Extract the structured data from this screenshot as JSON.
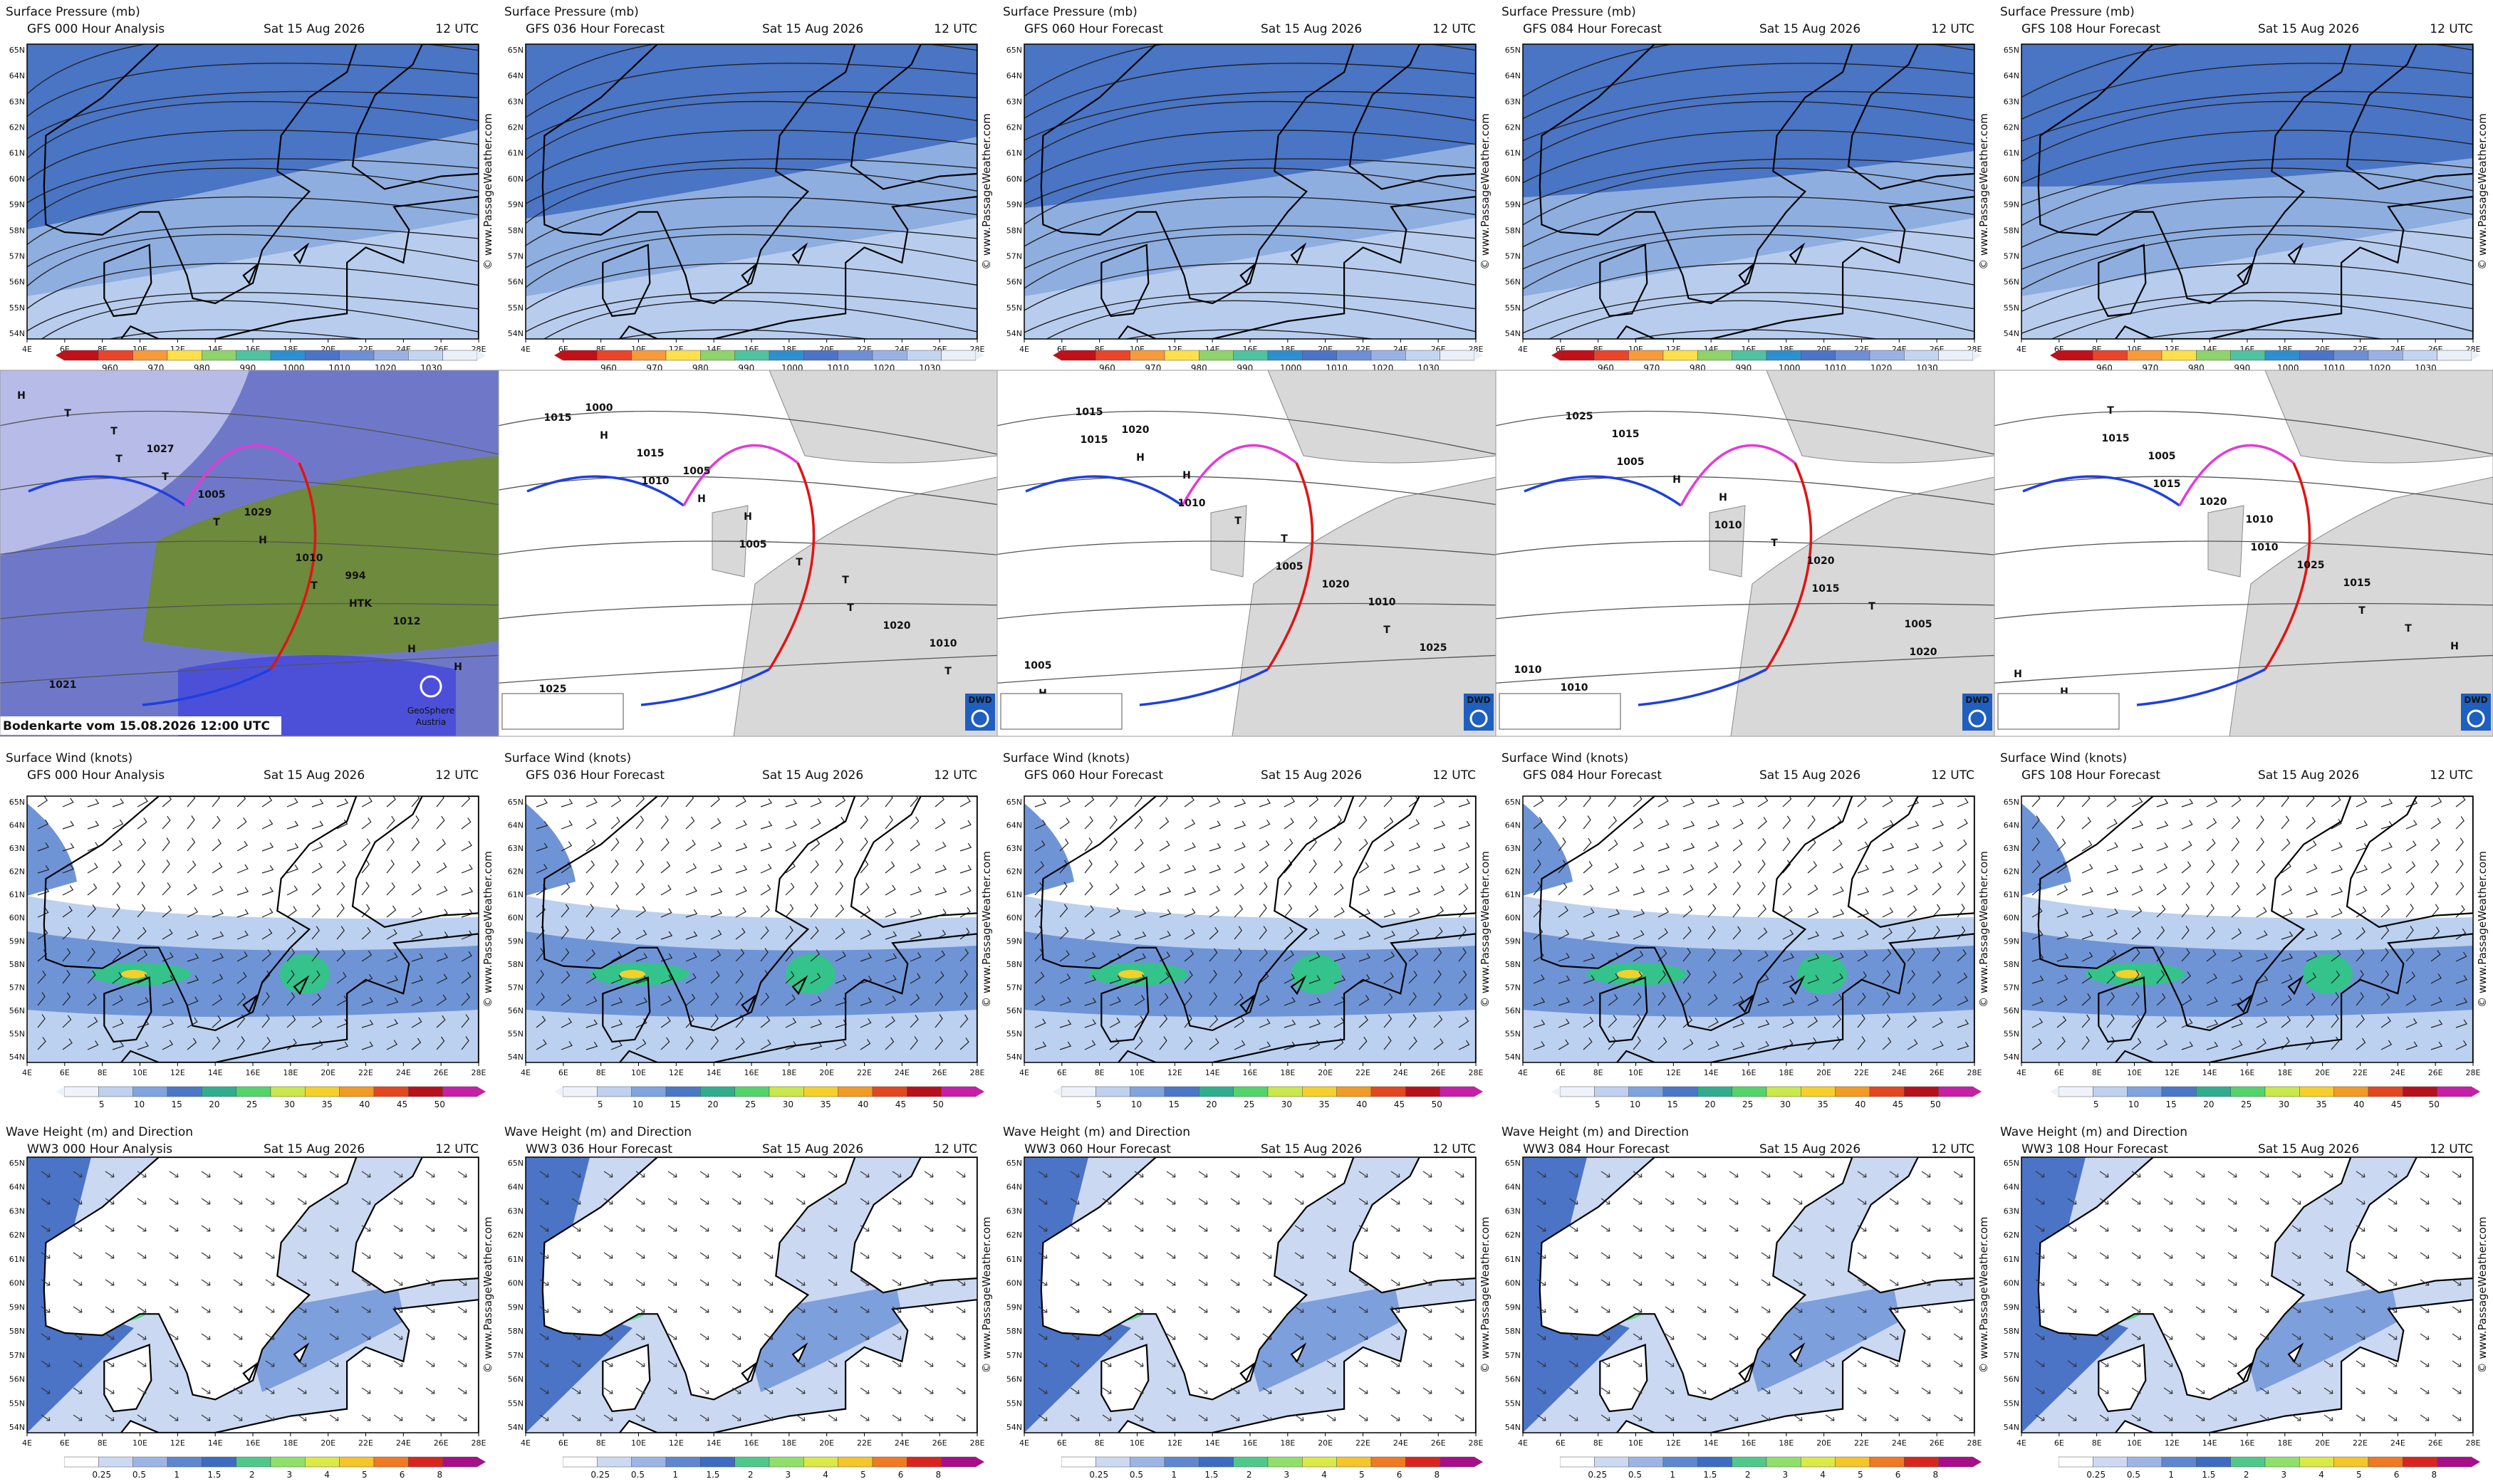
{
  "lon_ticks": [
    "4E",
    "6E",
    "8E",
    "10E",
    "12E",
    "14E",
    "16E",
    "18E",
    "20E",
    "22E",
    "24E",
    "26E",
    "28E"
  ],
  "lat_ticks": [
    "65N",
    "64N",
    "63N",
    "62N",
    "61N",
    "60N",
    "59N",
    "58N",
    "57N",
    "56N",
    "55N",
    "54N"
  ],
  "watermark": "© www.PassageWeather.com",
  "rows": [
    {
      "title": "Surface Pressure (mb)",
      "colorbar": [
        "960",
        "970",
        "980",
        "990",
        "1000",
        "1010",
        "1020",
        "1030"
      ],
      "panels": [
        {
          "line2": "GFS 000 Hour Analysis",
          "date": "Sat 15 Aug 2026",
          "time": "12 UTC"
        },
        {
          "line2": "GFS 036 Hour Forecast",
          "date": "Sat 15 Aug 2026",
          "time": "12 UTC"
        },
        {
          "line2": "GFS 060 Hour Forecast",
          "date": "Sat 15 Aug 2026",
          "time": "12 UTC"
        },
        {
          "line2": "GFS 084 Hour Forecast",
          "date": "Sat 15 Aug 2026",
          "time": "12 UTC"
        },
        {
          "line2": "GFS 108 Hour Forecast",
          "date": "Sat 15 Aug 2026",
          "time": "12 UTC"
        }
      ]
    },
    {
      "fronts": {
        "caption": "Bodenkarte vom 15.08.2026 12:00 UTC",
        "logo": [
          "GeoSphere",
          "Austria"
        ],
        "dwd": "DWD",
        "labels": [
          [
            "H",
            "T",
            "T",
            "T",
            "H",
            "T",
            "T",
            "H",
            "HTK",
            "H",
            "T",
            "1005",
            "1010",
            "1012",
            "1021",
            "1027",
            "1029",
            "994"
          ],
          [
            "1015",
            "1010",
            "1005",
            "T",
            "T",
            "H",
            "H",
            "T",
            "1020",
            "1025",
            "1015",
            "H",
            "T",
            "1010",
            "1000",
            "1005"
          ],
          [
            "1015",
            "1010",
            "1005",
            "T",
            "H",
            "H",
            "T",
            "1020",
            "1025",
            "1015",
            "H",
            "T",
            "1010",
            "1005",
            "1020"
          ],
          [
            "1005",
            "1010",
            "1015",
            "1020",
            "1025",
            "H",
            "T",
            "T",
            "1010",
            "1015",
            "H",
            "1020",
            "1005",
            "1010"
          ],
          [
            "1015",
            "1010",
            "T",
            "H",
            "1015",
            "1020",
            "1025",
            "T",
            "H",
            "1005",
            "1010",
            "1015",
            "H",
            "T"
          ]
        ]
      }
    },
    {
      "title": "Surface Wind (knots)",
      "colorbar": [
        "5",
        "10",
        "15",
        "20",
        "25",
        "30",
        "35",
        "40",
        "45",
        "50"
      ],
      "panels": [
        {
          "line2": "GFS 000 Hour Analysis",
          "date": "Sat 15 Aug 2026",
          "time": "12 UTC"
        },
        {
          "line2": "GFS 036 Hour Forecast",
          "date": "Sat 15 Aug 2026",
          "time": "12 UTC"
        },
        {
          "line2": "GFS 060 Hour Forecast",
          "date": "Sat 15 Aug 2026",
          "time": "12 UTC"
        },
        {
          "line2": "GFS 084 Hour Forecast",
          "date": "Sat 15 Aug 2026",
          "time": "12 UTC"
        },
        {
          "line2": "GFS 108 Hour Forecast",
          "date": "Sat 15 Aug 2026",
          "time": "12 UTC"
        }
      ]
    },
    {
      "title": "Wave Height (m) and Direction",
      "colorbar": [
        "0.25",
        "0.5",
        "1",
        "1.5",
        "2",
        "3",
        "4",
        "5",
        "6",
        "8"
      ],
      "panels": [
        {
          "line2": "WW3 000 Hour Analysis",
          "date": "Sat 15 Aug 2026",
          "time": "12 UTC"
        },
        {
          "line2": "WW3 036 Hour Forecast",
          "date": "Sat 15 Aug 2026",
          "time": "12 UTC"
        },
        {
          "line2": "WW3 060 Hour Forecast",
          "date": "Sat 15 Aug 2026",
          "time": "12 UTC"
        },
        {
          "line2": "WW3 084 Hour Forecast",
          "date": "Sat 15 Aug 2026",
          "time": "12 UTC"
        },
        {
          "line2": "WW3 108 Hour Forecast",
          "date": "Sat 15 Aug 2026",
          "time": "12 UTC"
        }
      ]
    }
  ]
}
